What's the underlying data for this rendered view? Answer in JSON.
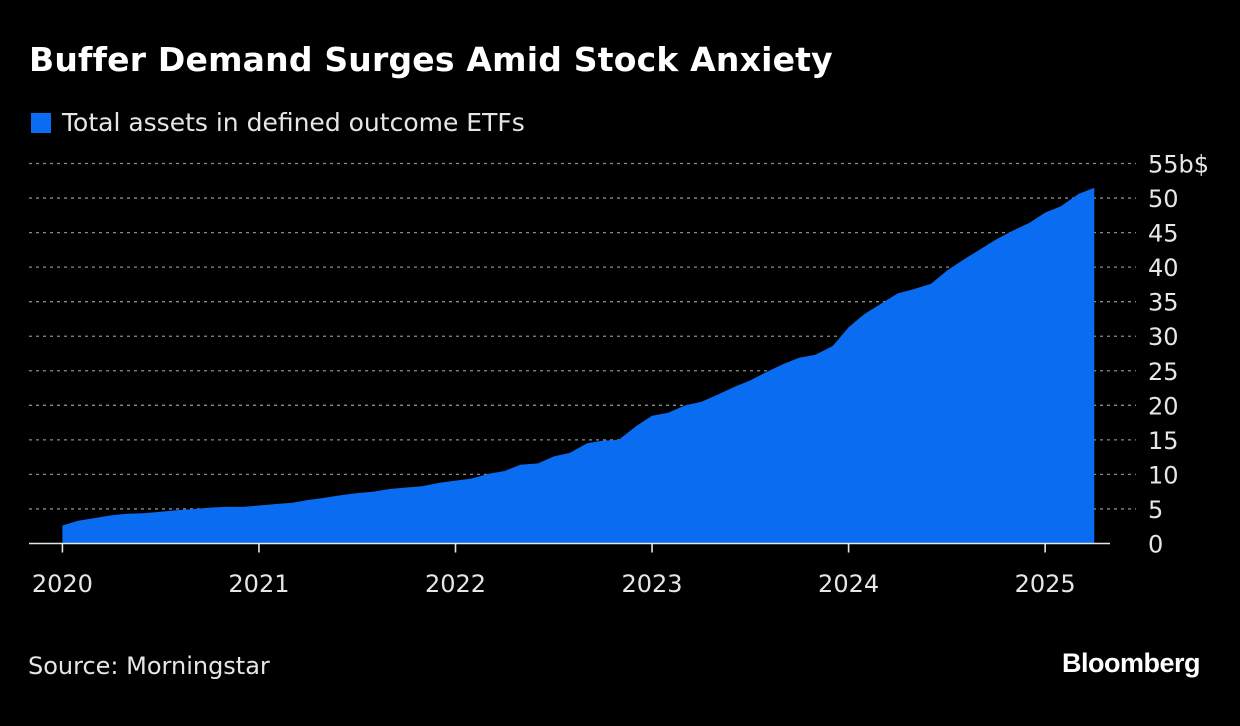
{
  "title": "Buffer Demand Surges Amid Stock Anxiety",
  "legend": {
    "label": "Total assets in defined outcome ETFs",
    "color": "#0a6cf0"
  },
  "source": "Source: Morningstar",
  "brand": "Bloomberg",
  "chart_data": {
    "type": "area",
    "title": "Buffer Demand Surges Amid Stock Anxiety",
    "xlabel": "",
    "ylabel": "",
    "xlim": [
      2019.83,
      2025.33
    ],
    "ylim": [
      0,
      55
    ],
    "y_ticks": [
      {
        "value": 0,
        "label": "0"
      },
      {
        "value": 5,
        "label": "5"
      },
      {
        "value": 10,
        "label": "10"
      },
      {
        "value": 15,
        "label": "15"
      },
      {
        "value": 20,
        "label": "20"
      },
      {
        "value": 25,
        "label": "25"
      },
      {
        "value": 30,
        "label": "30"
      },
      {
        "value": 35,
        "label": "35"
      },
      {
        "value": 40,
        "label": "40"
      },
      {
        "value": 45,
        "label": "45"
      },
      {
        "value": 50,
        "label": "50"
      },
      {
        "value": 55,
        "label": "55b$"
      }
    ],
    "x_ticks": [
      {
        "value": 2020,
        "label": "2020"
      },
      {
        "value": 2021,
        "label": "2021"
      },
      {
        "value": 2022,
        "label": "2022"
      },
      {
        "value": 2023,
        "label": "2023"
      },
      {
        "value": 2024,
        "label": "2024"
      },
      {
        "value": 2025,
        "label": "2025"
      }
    ],
    "grid": true,
    "legend_position": "top-left",
    "series": [
      {
        "name": "Total assets in defined outcome ETFs",
        "color": "#0a6cf0",
        "points": [
          [
            2020.0,
            2.6
          ],
          [
            2020.08,
            3.3
          ],
          [
            2020.17,
            3.7
          ],
          [
            2020.25,
            4.1
          ],
          [
            2020.33,
            4.3
          ],
          [
            2020.42,
            4.4
          ],
          [
            2020.5,
            4.6
          ],
          [
            2020.58,
            4.8
          ],
          [
            2020.67,
            5.0
          ],
          [
            2020.75,
            5.2
          ],
          [
            2020.83,
            5.3
          ],
          [
            2020.92,
            5.3
          ],
          [
            2021.0,
            5.5
          ],
          [
            2021.08,
            5.7
          ],
          [
            2021.17,
            5.9
          ],
          [
            2021.25,
            6.3
          ],
          [
            2021.33,
            6.6
          ],
          [
            2021.42,
            7.0
          ],
          [
            2021.5,
            7.3
          ],
          [
            2021.58,
            7.5
          ],
          [
            2021.67,
            7.9
          ],
          [
            2021.75,
            8.1
          ],
          [
            2021.83,
            8.3
          ],
          [
            2021.92,
            8.8
          ],
          [
            2022.0,
            9.1
          ],
          [
            2022.08,
            9.4
          ],
          [
            2022.17,
            10.1
          ],
          [
            2022.25,
            10.5
          ],
          [
            2022.33,
            11.4
          ],
          [
            2022.42,
            11.6
          ],
          [
            2022.5,
            12.6
          ],
          [
            2022.58,
            13.1
          ],
          [
            2022.67,
            14.5
          ],
          [
            2022.75,
            14.9
          ],
          [
            2022.83,
            15.0
          ],
          [
            2022.92,
            17.0
          ],
          [
            2023.0,
            18.5
          ],
          [
            2023.08,
            18.9
          ],
          [
            2023.17,
            20.0
          ],
          [
            2023.25,
            20.5
          ],
          [
            2023.33,
            21.5
          ],
          [
            2023.42,
            22.7
          ],
          [
            2023.5,
            23.6
          ],
          [
            2023.58,
            24.8
          ],
          [
            2023.67,
            26.0
          ],
          [
            2023.75,
            26.9
          ],
          [
            2023.83,
            27.3
          ],
          [
            2023.92,
            28.6
          ],
          [
            2024.0,
            31.3
          ],
          [
            2024.08,
            33.2
          ],
          [
            2024.17,
            34.8
          ],
          [
            2024.25,
            36.2
          ],
          [
            2024.33,
            36.8
          ],
          [
            2024.42,
            37.6
          ],
          [
            2024.5,
            39.5
          ],
          [
            2024.58,
            41.0
          ],
          [
            2024.67,
            42.6
          ],
          [
            2024.75,
            44.0
          ],
          [
            2024.83,
            45.2
          ],
          [
            2024.92,
            46.4
          ],
          [
            2025.0,
            47.9
          ],
          [
            2025.08,
            48.8
          ],
          [
            2025.17,
            50.6
          ],
          [
            2025.25,
            51.5
          ]
        ]
      }
    ]
  }
}
